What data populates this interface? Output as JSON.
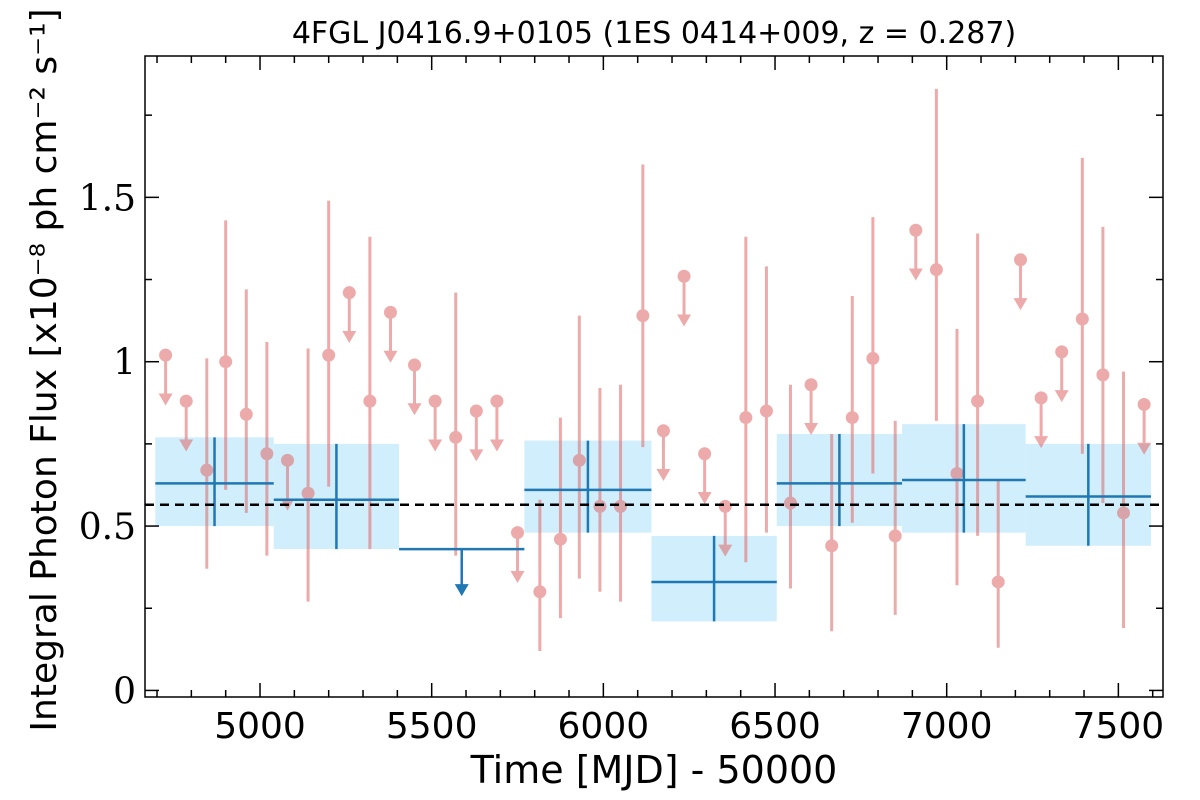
{
  "chart_data": {
    "type": "scatter",
    "title": "4FGL J0416.9+0105 (1ES 0414+009, z = 0.287)",
    "xlabel": "Time [MJD] - 50000",
    "ylabel": "Integral Photon Flux [x10⁻⁸ ph cm⁻² s⁻¹]",
    "xlim": [
      4665,
      7630
    ],
    "ylim": [
      -0.02,
      1.93
    ],
    "x_ticks": [
      5000,
      5500,
      6000,
      6500,
      7000,
      7500
    ],
    "x_tick_labels": [
      "5000",
      "5500",
      "6000",
      "6500",
      "7000",
      "7500"
    ],
    "y_ticks": [
      0,
      0.5,
      1,
      1.5
    ],
    "y_tick_labels": [
      "0",
      "0.5",
      "1",
      "1.5"
    ],
    "mean_flux": 0.565,
    "colors": {
      "fine_bins": "#e06666",
      "coarse_bins": "#1f77b4",
      "coarse_band": "#d0eefc",
      "mean_line": "#000000"
    },
    "coarse_bins": [
      {
        "x0": 4695,
        "x1": 5040,
        "y": 0.63,
        "ylo": 0.5,
        "yhi": 0.77
      },
      {
        "x0": 5040,
        "x1": 5405,
        "y": 0.58,
        "ylo": 0.43,
        "yhi": 0.75
      },
      {
        "x0": 5405,
        "x1": 5770,
        "y": 0.43,
        "ul": true
      },
      {
        "x0": 5770,
        "x1": 6140,
        "y": 0.61,
        "ylo": 0.48,
        "yhi": 0.76
      },
      {
        "x0": 6140,
        "x1": 6505,
        "y": 0.33,
        "ylo": 0.21,
        "yhi": 0.47
      },
      {
        "x0": 6505,
        "x1": 6870,
        "y": 0.63,
        "ylo": 0.5,
        "yhi": 0.78
      },
      {
        "x0": 6870,
        "x1": 7230,
        "y": 0.64,
        "ylo": 0.48,
        "yhi": 0.81
      },
      {
        "x0": 7230,
        "x1": 7595,
        "y": 0.59,
        "ylo": 0.44,
        "yhi": 0.75
      }
    ],
    "fine_bins": [
      {
        "x": 4725,
        "y": 1.02,
        "ul": true
      },
      {
        "x": 4785,
        "y": 0.88,
        "ul": true
      },
      {
        "x": 4845,
        "y": 0.67,
        "ylo": 0.37,
        "yhi": 1.01
      },
      {
        "x": 4900,
        "y": 1.0,
        "ylo": 0.61,
        "yhi": 1.43
      },
      {
        "x": 4960,
        "y": 0.84,
        "ylo": 0.54,
        "yhi": 1.22
      },
      {
        "x": 5020,
        "y": 0.72,
        "ylo": 0.41,
        "yhi": 1.06
      },
      {
        "x": 5080,
        "y": 0.7,
        "ul": true
      },
      {
        "x": 5140,
        "y": 0.6,
        "ylo": 0.27,
        "yhi": 1.04
      },
      {
        "x": 5200,
        "y": 1.02,
        "ylo": 0.62,
        "yhi": 1.49
      },
      {
        "x": 5260,
        "y": 1.21,
        "ul": true
      },
      {
        "x": 5320,
        "y": 0.88,
        "ylo": 0.43,
        "yhi": 1.38
      },
      {
        "x": 5380,
        "y": 1.15,
        "ul": true
      },
      {
        "x": 5450,
        "y": 0.99,
        "ul": true
      },
      {
        "x": 5510,
        "y": 0.88,
        "ul": true
      },
      {
        "x": 5570,
        "y": 0.77,
        "ylo": 0.41,
        "yhi": 1.21
      },
      {
        "x": 5630,
        "y": 0.85,
        "ul": true
      },
      {
        "x": 5690,
        "y": 0.88,
        "ul": true
      },
      {
        "x": 5750,
        "y": 0.48,
        "ul": true
      },
      {
        "x": 5815,
        "y": 0.3,
        "ylo": 0.12,
        "yhi": 0.58
      },
      {
        "x": 5875,
        "y": 0.46,
        "ylo": 0.22,
        "yhi": 0.83
      },
      {
        "x": 5930,
        "y": 0.7,
        "ylo": 0.34,
        "yhi": 1.14
      },
      {
        "x": 5990,
        "y": 0.56,
        "ylo": 0.3,
        "yhi": 0.92
      },
      {
        "x": 6050,
        "y": 0.56,
        "ylo": 0.27,
        "yhi": 0.93
      },
      {
        "x": 6115,
        "y": 1.14,
        "ylo": 0.74,
        "yhi": 1.6
      },
      {
        "x": 6175,
        "y": 0.79,
        "ul": true
      },
      {
        "x": 6235,
        "y": 1.26,
        "ul": true
      },
      {
        "x": 6295,
        "y": 0.72,
        "ul": true
      },
      {
        "x": 6355,
        "y": 0.56,
        "ul": true
      },
      {
        "x": 6415,
        "y": 0.83,
        "ylo": 0.39,
        "yhi": 1.38
      },
      {
        "x": 6475,
        "y": 0.85,
        "ylo": 0.48,
        "yhi": 1.29
      },
      {
        "x": 6545,
        "y": 0.57,
        "ylo": 0.31,
        "yhi": 0.93
      },
      {
        "x": 6605,
        "y": 0.93,
        "ul": true
      },
      {
        "x": 6665,
        "y": 0.44,
        "ylo": 0.18,
        "yhi": 0.78
      },
      {
        "x": 6725,
        "y": 0.83,
        "ylo": 0.51,
        "yhi": 1.2
      },
      {
        "x": 6785,
        "y": 1.01,
        "ylo": 0.66,
        "yhi": 1.44
      },
      {
        "x": 6850,
        "y": 0.47,
        "ylo": 0.23,
        "yhi": 0.82
      },
      {
        "x": 6910,
        "y": 1.4,
        "ul": true
      },
      {
        "x": 6970,
        "y": 1.28,
        "ylo": 0.82,
        "yhi": 1.83
      },
      {
        "x": 7030,
        "y": 0.66,
        "ylo": 0.32,
        "yhi": 1.1
      },
      {
        "x": 7090,
        "y": 0.88,
        "ylo": 0.47,
        "yhi": 1.39
      },
      {
        "x": 7150,
        "y": 0.33,
        "ylo": 0.13,
        "yhi": 0.64
      },
      {
        "x": 7215,
        "y": 1.31,
        "ul": true
      },
      {
        "x": 7275,
        "y": 0.89,
        "ul": true
      },
      {
        "x": 7335,
        "y": 1.03,
        "ul": true
      },
      {
        "x": 7395,
        "y": 1.13,
        "ylo": 0.72,
        "yhi": 1.62
      },
      {
        "x": 7455,
        "y": 0.96,
        "ylo": 0.57,
        "yhi": 1.41
      },
      {
        "x": 7515,
        "y": 0.54,
        "ylo": 0.19,
        "yhi": 0.97
      },
      {
        "x": 7575,
        "y": 0.87,
        "ul": true
      }
    ]
  }
}
